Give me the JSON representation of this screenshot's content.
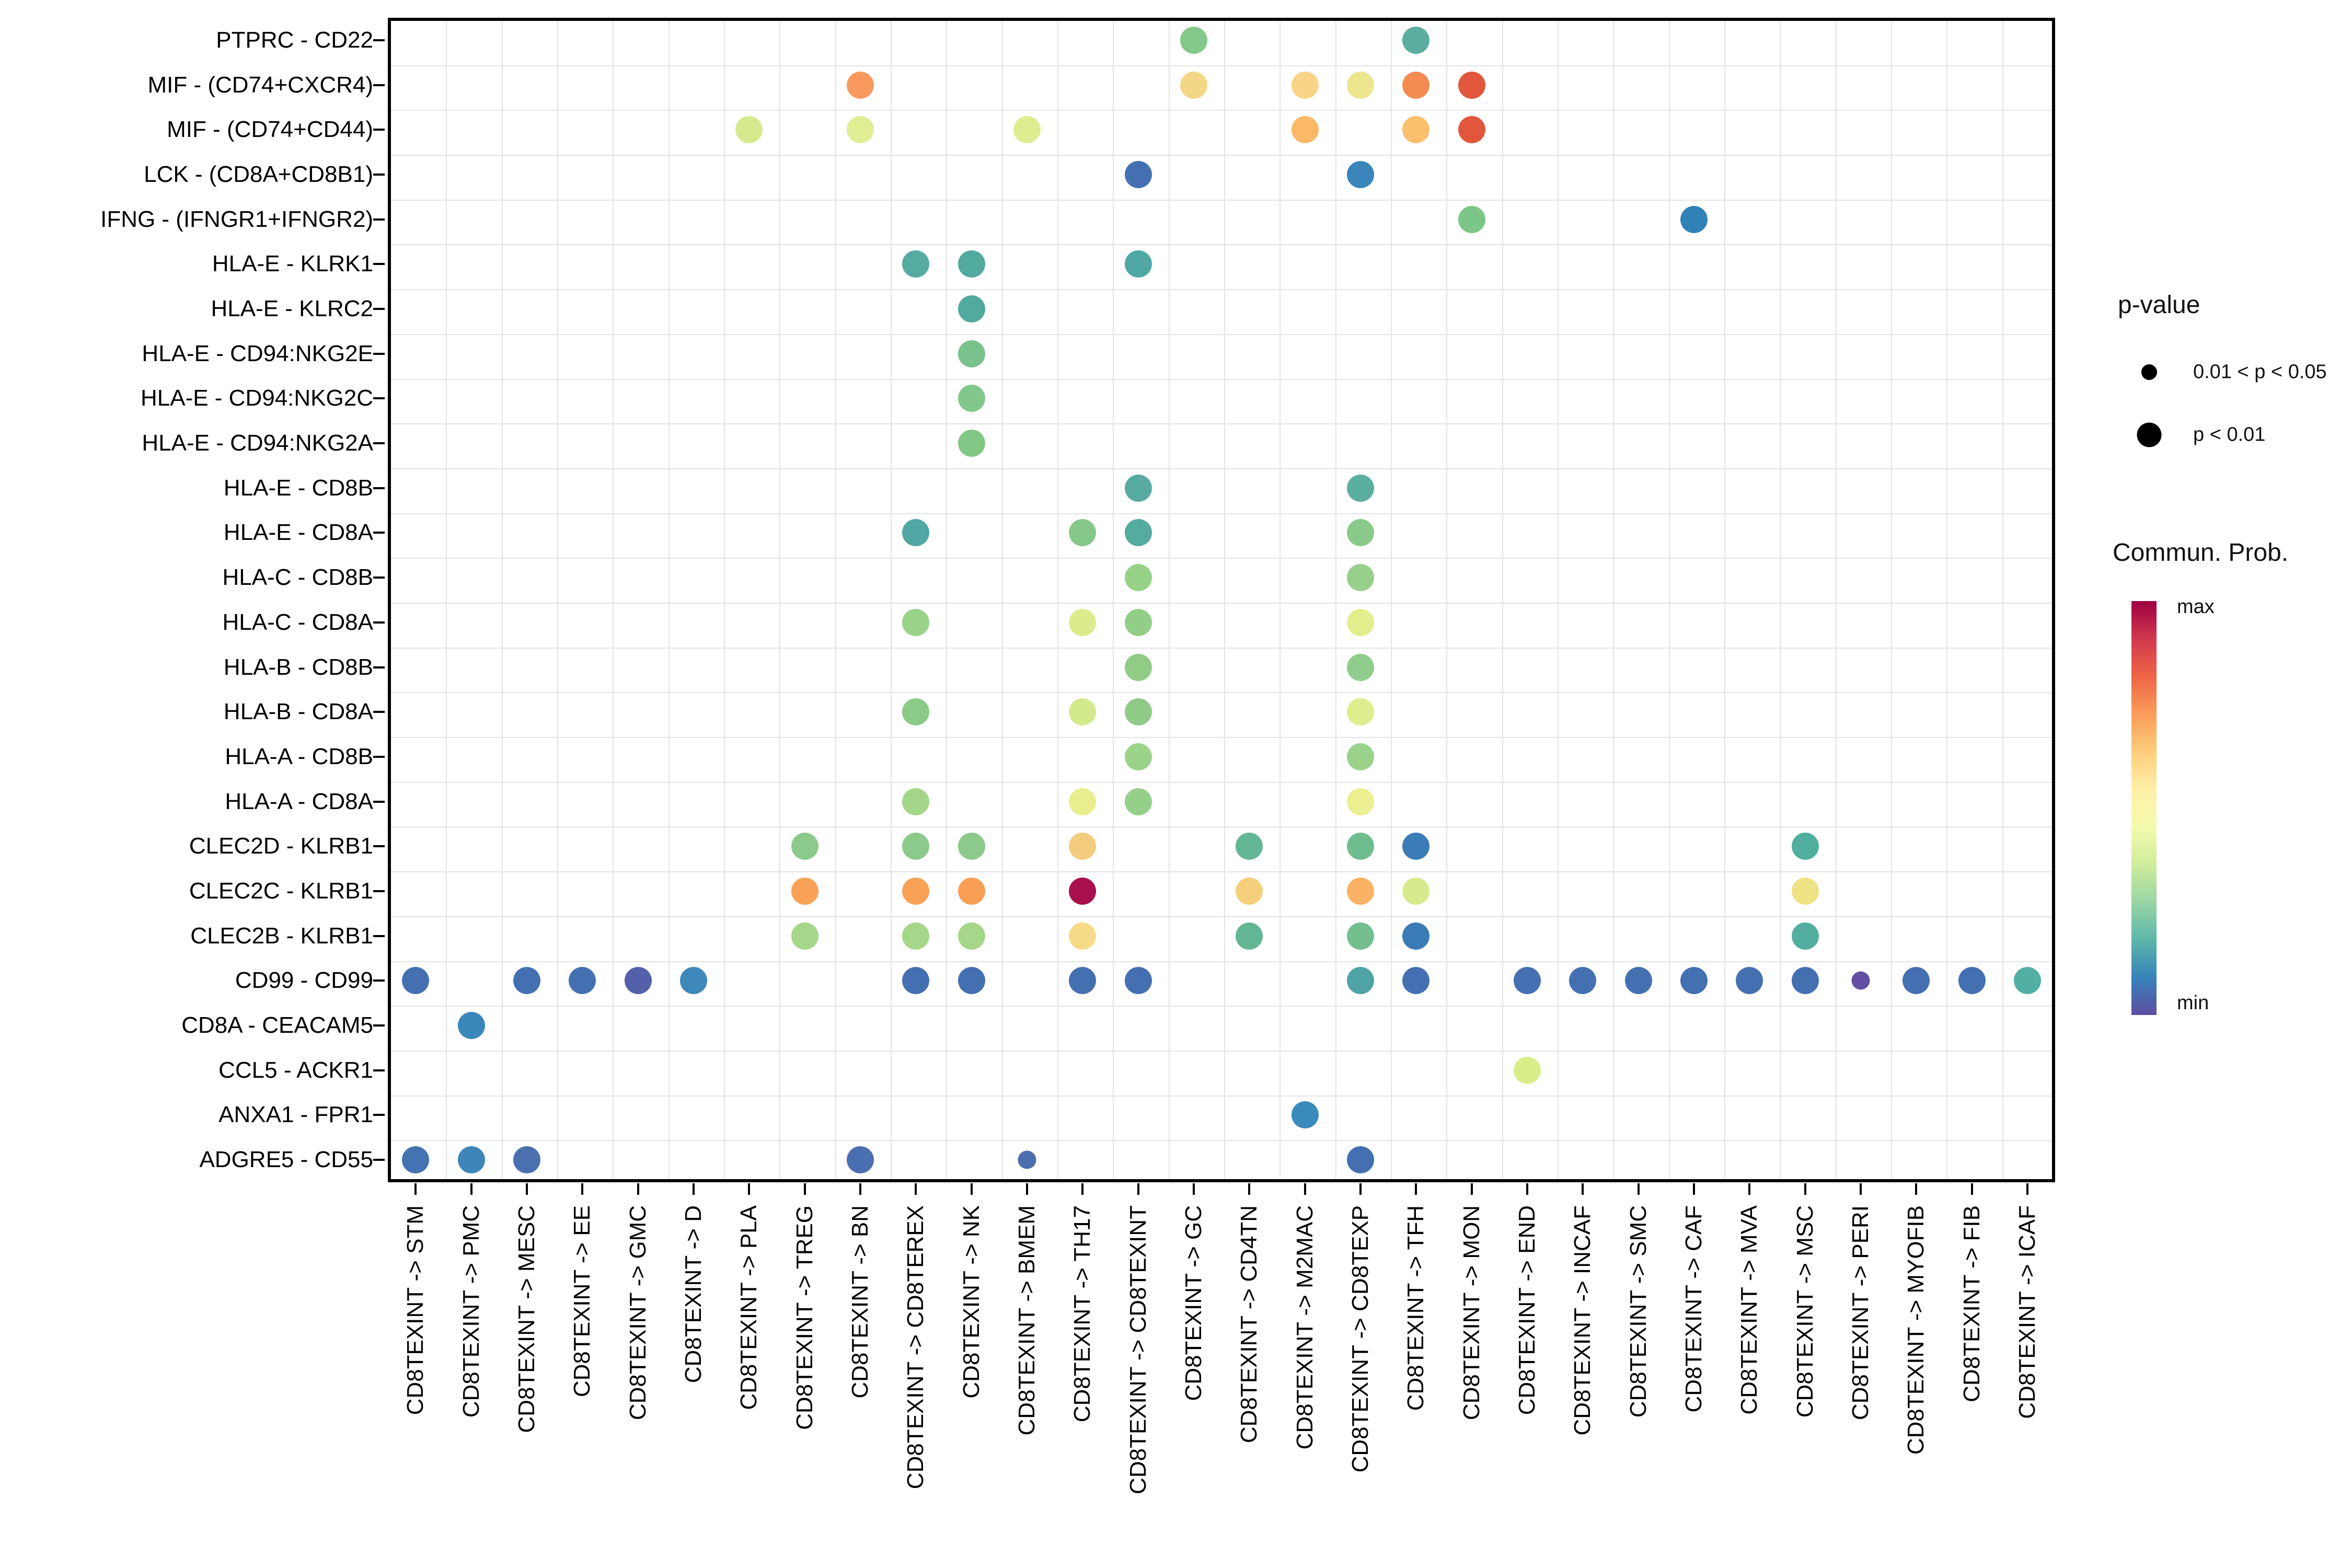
{
  "legend": {
    "pvalue_title": "p-value",
    "items": [
      {
        "label": "0.01 < p < 0.05",
        "size": "small"
      },
      {
        "label": "p < 0.01",
        "size": "large"
      }
    ],
    "colorbar_title": "Commun. Prob.",
    "colorbar_max": "max",
    "colorbar_min": "min",
    "colorbar_colors": [
      "#9E0142",
      "#D0384E",
      "#EE6445",
      "#FA9C58",
      "#FDCD7B",
      "#FEF0A7",
      "#F3FAAD",
      "#D0EC9C",
      "#98D5A4",
      "#5CB7A9",
      "#3682BA",
      "#5E4FA2"
    ]
  },
  "chart_data": {
    "type": "scatter",
    "subtype": "dotplot-bubble-matrix",
    "title": "",
    "xlabel": "",
    "ylabel": "",
    "grid": "light-gray cell borders",
    "legend_position": "right",
    "x_categories": [
      "CD8TEXINT -> STM",
      "CD8TEXINT -> PMC",
      "CD8TEXINT -> MESC",
      "CD8TEXINT -> EE",
      "CD8TEXINT -> GMC",
      "CD8TEXINT -> D",
      "CD8TEXINT -> PLA",
      "CD8TEXINT -> TREG",
      "CD8TEXINT -> BN",
      "CD8TEXINT -> CD8TEREX",
      "CD8TEXINT -> NK",
      "CD8TEXINT -> BMEM",
      "CD8TEXINT -> TH17",
      "CD8TEXINT -> CD8TEXINT",
      "CD8TEXINT -> GC",
      "CD8TEXINT -> CD4TN",
      "CD8TEXINT -> M2MAC",
      "CD8TEXINT -> CD8TEXP",
      "CD8TEXINT -> TFH",
      "CD8TEXINT -> MON",
      "CD8TEXINT -> END",
      "CD8TEXINT -> INCAF",
      "CD8TEXINT -> SMC",
      "CD8TEXINT -> CAF",
      "CD8TEXINT -> MVA",
      "CD8TEXINT -> MSC",
      "CD8TEXINT -> PERI",
      "CD8TEXINT -> MYOFIB",
      "CD8TEXINT -> FIB",
      "CD8TEXINT -> ICAF"
    ],
    "y_categories": [
      "PTPRC - CD22",
      "MIF - (CD74+CXCR4)",
      "MIF - (CD74+CD44)",
      "LCK - (CD8A+CD8B1)",
      "IFNG - (IFNGR1+IFNGR2)",
      "HLA-E - KLRK1",
      "HLA-E - KLRC2",
      "HLA-E - CD94:NKG2E",
      "HLA-E - CD94:NKG2C",
      "HLA-E - CD94:NKG2A",
      "HLA-E - CD8B",
      "HLA-E - CD8A",
      "HLA-C - CD8B",
      "HLA-C - CD8A",
      "HLA-B - CD8B",
      "HLA-B - CD8A",
      "HLA-A - CD8B",
      "HLA-A - CD8A",
      "CLEC2D - KLRB1",
      "CLEC2C - KLRB1",
      "CLEC2B - KLRB1",
      "CD99 - CD99",
      "CD8A - CEACAM5",
      "CCL5 - ACKR1",
      "ANXA1 - FPR1",
      "ADGRE5 - CD55"
    ],
    "point_format": [
      "row_index",
      "col_index",
      "color_hex",
      "size_flag: 1 = p<0.01 (large), 0 = 0.01<p<0.05 (small)"
    ],
    "color_scale": "Commun. Prob. min (blue/purple) -> max (dark red), Spectral reversed",
    "points": [
      [
        0,
        14,
        "#84C989",
        1
      ],
      [
        0,
        18,
        "#5BAD9F",
        1
      ],
      [
        1,
        8,
        "#F89A5E",
        1
      ],
      [
        1,
        14,
        "#F4D687",
        1
      ],
      [
        1,
        16,
        "#F7D488",
        1
      ],
      [
        1,
        17,
        "#ECE68F",
        1
      ],
      [
        1,
        18,
        "#F48C51",
        1
      ],
      [
        1,
        19,
        "#E2563B",
        1
      ],
      [
        2,
        6,
        "#D5EA8E",
        1
      ],
      [
        2,
        8,
        "#E0ED95",
        1
      ],
      [
        2,
        11,
        "#DFED90",
        1
      ],
      [
        2,
        16,
        "#FBB866",
        1
      ],
      [
        2,
        18,
        "#FAC06E",
        1
      ],
      [
        2,
        19,
        "#E2563B",
        1
      ],
      [
        3,
        13,
        "#4470B2",
        1
      ],
      [
        3,
        17,
        "#3A85BA",
        1
      ],
      [
        4,
        19,
        "#7CC687",
        1
      ],
      [
        4,
        23,
        "#3181B9",
        1
      ],
      [
        5,
        9,
        "#55ABA0",
        1
      ],
      [
        5,
        10,
        "#52A99D",
        1
      ],
      [
        5,
        13,
        "#4FA8A3",
        1
      ],
      [
        6,
        10,
        "#52A99D",
        1
      ],
      [
        7,
        10,
        "#79C28D",
        1
      ],
      [
        8,
        10,
        "#82C78A",
        1
      ],
      [
        9,
        10,
        "#82C785",
        1
      ],
      [
        10,
        13,
        "#58ABA0",
        1
      ],
      [
        10,
        17,
        "#5BAFA0",
        1
      ],
      [
        11,
        9,
        "#50A7A3",
        1
      ],
      [
        11,
        12,
        "#85C889",
        1
      ],
      [
        11,
        13,
        "#55ABA0",
        1
      ],
      [
        11,
        17,
        "#8BC98B",
        1
      ],
      [
        12,
        13,
        "#98D188",
        1
      ],
      [
        12,
        17,
        "#97D08A",
        1
      ],
      [
        13,
        9,
        "#9AD287",
        1
      ],
      [
        13,
        12,
        "#DCEC8C",
        1
      ],
      [
        13,
        13,
        "#93CE89",
        1
      ],
      [
        13,
        17,
        "#E2EE8C",
        1
      ],
      [
        14,
        13,
        "#90CC86",
        1
      ],
      [
        14,
        17,
        "#90CC8B",
        1
      ],
      [
        15,
        9,
        "#8CCA87",
        1
      ],
      [
        15,
        12,
        "#D3EA8C",
        1
      ],
      [
        15,
        13,
        "#8FCB87",
        1
      ],
      [
        15,
        17,
        "#DEED8D",
        1
      ],
      [
        16,
        13,
        "#9BD38A",
        1
      ],
      [
        16,
        17,
        "#9AD28C",
        1
      ],
      [
        17,
        9,
        "#A3D688",
        1
      ],
      [
        17,
        12,
        "#E8EE8D",
        1
      ],
      [
        17,
        13,
        "#95CF89",
        1
      ],
      [
        17,
        17,
        "#EAEF90",
        1
      ],
      [
        18,
        7,
        "#8BCA8B",
        1
      ],
      [
        18,
        9,
        "#8BCA8B",
        1
      ],
      [
        18,
        10,
        "#8BCA8B",
        1
      ],
      [
        18,
        12,
        "#F4CC7E",
        1
      ],
      [
        18,
        15,
        "#63B694",
        1
      ],
      [
        18,
        17,
        "#6FBD8F",
        1
      ],
      [
        18,
        18,
        "#3C7CB6",
        1
      ],
      [
        18,
        25,
        "#4FAE9E",
        1
      ],
      [
        19,
        7,
        "#F9A257",
        1
      ],
      [
        19,
        9,
        "#F9A257",
        1
      ],
      [
        19,
        10,
        "#F89F55",
        1
      ],
      [
        19,
        12,
        "#A8104E",
        1
      ],
      [
        19,
        15,
        "#F6CF7C",
        1
      ],
      [
        19,
        17,
        "#F9B163",
        1
      ],
      [
        19,
        18,
        "#D7EB8E",
        1
      ],
      [
        19,
        25,
        "#EDE284",
        1
      ],
      [
        20,
        7,
        "#A5D689",
        1
      ],
      [
        20,
        9,
        "#A5D689",
        1
      ],
      [
        20,
        10,
        "#A5D689",
        1
      ],
      [
        20,
        12,
        "#F5DA88",
        1
      ],
      [
        20,
        15,
        "#63B694",
        1
      ],
      [
        20,
        17,
        "#74BF8D",
        1
      ],
      [
        20,
        18,
        "#3C7CB6",
        1
      ],
      [
        20,
        25,
        "#52AFA0",
        1
      ],
      [
        21,
        0,
        "#4470B2",
        1
      ],
      [
        21,
        2,
        "#4470B2",
        1
      ],
      [
        21,
        3,
        "#4470B2",
        1
      ],
      [
        21,
        4,
        "#5560AB",
        1
      ],
      [
        21,
        5,
        "#3D87BB",
        1
      ],
      [
        21,
        9,
        "#4470B2",
        1
      ],
      [
        21,
        10,
        "#4470B2",
        1
      ],
      [
        21,
        12,
        "#4470B2",
        1
      ],
      [
        21,
        13,
        "#4470B2",
        1
      ],
      [
        21,
        17,
        "#4FA3A5",
        1
      ],
      [
        21,
        18,
        "#4470B2",
        1
      ],
      [
        21,
        20,
        "#4470B2",
        1
      ],
      [
        21,
        21,
        "#4470B2",
        1
      ],
      [
        21,
        22,
        "#4470B2",
        1
      ],
      [
        21,
        23,
        "#4470B2",
        1
      ],
      [
        21,
        24,
        "#4470B2",
        1
      ],
      [
        21,
        25,
        "#4470B2",
        1
      ],
      [
        21,
        26,
        "#6450A2",
        0
      ],
      [
        21,
        27,
        "#4470B2",
        1
      ],
      [
        21,
        28,
        "#4470B2",
        1
      ],
      [
        21,
        29,
        "#52AFA3",
        1
      ],
      [
        22,
        1,
        "#3B87BB",
        1
      ],
      [
        23,
        20,
        "#D9EE89",
        1
      ],
      [
        24,
        16,
        "#3A8BBB",
        1
      ],
      [
        25,
        0,
        "#4573B2",
        1
      ],
      [
        25,
        1,
        "#3E86BA",
        1
      ],
      [
        25,
        2,
        "#4A70B0",
        1
      ],
      [
        25,
        8,
        "#4A6FB0",
        1
      ],
      [
        25,
        11,
        "#4C6DAE",
        0
      ],
      [
        25,
        17,
        "#4470B2",
        1
      ]
    ]
  }
}
